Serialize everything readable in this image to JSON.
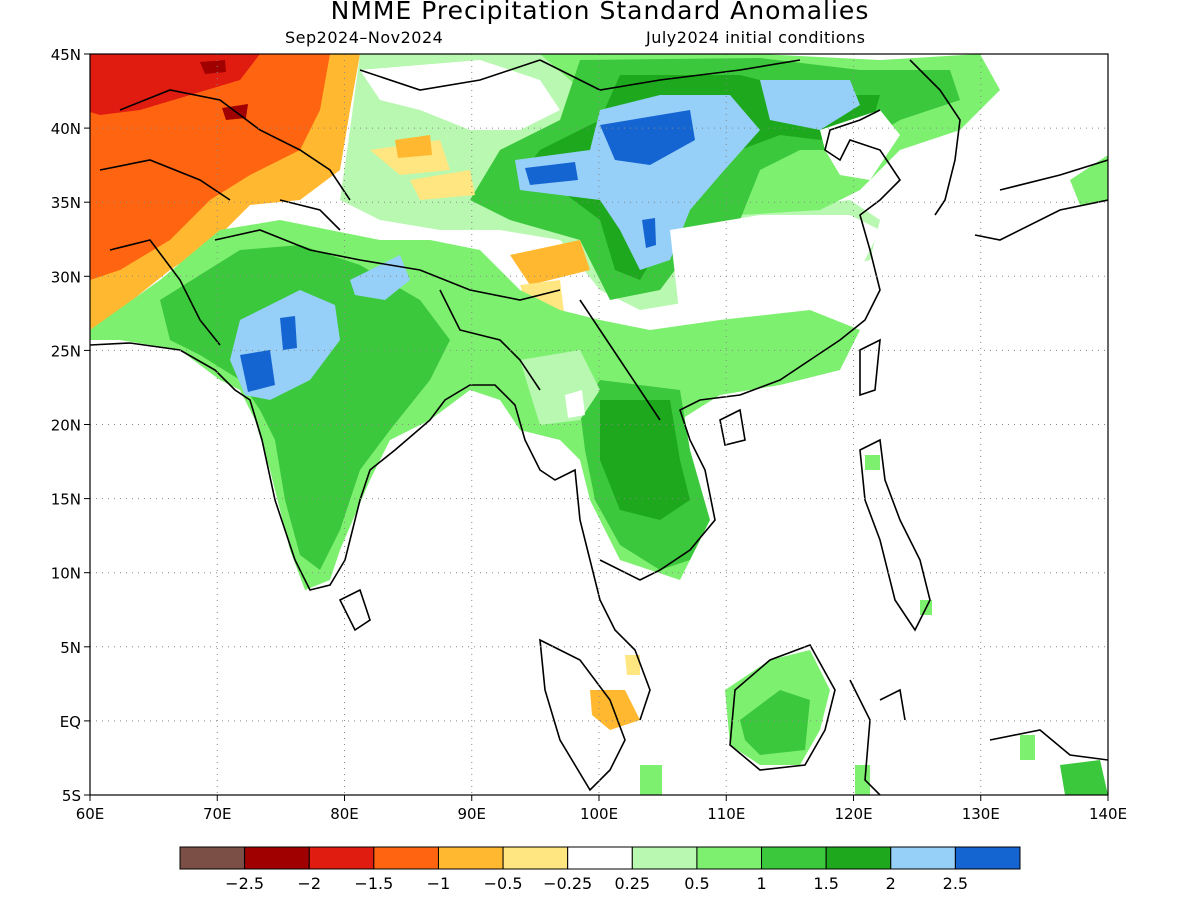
{
  "title": "NMME Precipitation Standard Anomalies",
  "subtitle_period": "Sep2024–Nov2024",
  "subtitle_ic": "July2024 initial conditions",
  "map": {
    "lon_range": [
      60,
      140
    ],
    "lat_range": [
      -5,
      45
    ],
    "lon_ticks": [
      "60E",
      "70E",
      "80E",
      "90E",
      "100E",
      "110E",
      "120E",
      "130E",
      "140E"
    ],
    "lat_ticks": [
      "5S",
      "EQ",
      "5N",
      "10N",
      "15N",
      "20N",
      "25N",
      "30N",
      "35N",
      "40N",
      "45N"
    ],
    "grid": "dotted"
  },
  "colorbar": {
    "colors": [
      "#7b4f45",
      "#a10000",
      "#e01b10",
      "#ff6510",
      "#ffb830",
      "#ffe680",
      "#ffffff",
      "#b8f8b0",
      "#7ef070",
      "#3cc83c",
      "#1ea81e",
      "#96d0f8",
      "#1464d2"
    ],
    "labels": [
      "−2.5",
      "−2",
      "−1.5",
      "−1",
      "−0.5",
      "−0.25",
      "0.25",
      "0.5",
      "1",
      "1.5",
      "2",
      "2.5"
    ]
  }
}
